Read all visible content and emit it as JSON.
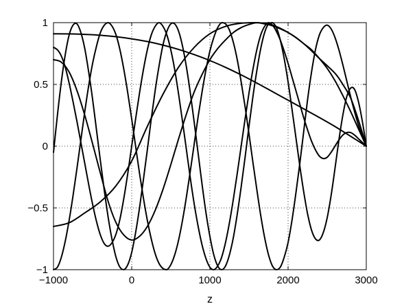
{
  "chart_data": {
    "type": "line",
    "title": "",
    "xlabel": "z",
    "ylabel": "",
    "xlim": [
      -1000,
      3000
    ],
    "ylim": [
      -1,
      1
    ],
    "grid": true,
    "grid_style": "dotted",
    "box": true,
    "line_color": "#000000",
    "xticks": [
      -1000,
      0,
      1000,
      2000,
      3000
    ],
    "xtick_labels": [
      "−1000",
      "0",
      "1000",
      "2000",
      "3000"
    ],
    "yticks": [
      -1,
      -0.5,
      0,
      0.5,
      1
    ],
    "ytick_labels": [
      "−1",
      "−0.5",
      "0",
      "0.5",
      "1"
    ],
    "series": [
      {
        "x": [
          -1000,
          -800,
          -600,
          -400,
          -200,
          0,
          200,
          400,
          600,
          800,
          1000,
          1200,
          1400,
          1600,
          1800,
          2000,
          2200,
          2400,
          2600,
          2800,
          3000
        ],
        "y": [
          0.91,
          0.909,
          0.905,
          0.898,
          0.886,
          0.869,
          0.847,
          0.818,
          0.783,
          0.741,
          0.693,
          0.638,
          0.577,
          0.511,
          0.442,
          0.372,
          0.302,
          0.232,
          0.159,
          0.08,
          0.0
        ]
      },
      {
        "x": [
          -1000,
          -800,
          -600,
          -400,
          -200,
          0,
          200,
          400,
          600,
          800,
          1000,
          1200,
          1400,
          1600,
          1800,
          2000,
          2200,
          2400,
          2600,
          2700,
          2800,
          2900,
          3000
        ],
        "y": [
          -0.65,
          -0.62,
          -0.54,
          -0.45,
          -0.32,
          -0.12,
          0.16,
          0.42,
          0.64,
          0.8,
          0.91,
          0.97,
          0.995,
          1.0,
          0.98,
          0.92,
          0.83,
          0.71,
          0.59,
          0.5,
          0.39,
          0.21,
          0.0
        ]
      },
      {
        "x": [
          -1000,
          -900,
          -800,
          -700,
          -600,
          -500,
          -400,
          -300,
          -200,
          -100,
          0,
          100,
          200,
          300,
          400,
          500,
          600,
          700,
          800,
          900,
          1000,
          1100,
          1200,
          1300,
          1400,
          1500,
          1600,
          1700,
          1800,
          1900,
          2000,
          2100,
          2200,
          2300,
          2400,
          2500,
          2600,
          2700,
          2800,
          2900,
          3000
        ],
        "y": [
          0.7,
          0.68,
          0.6,
          0.45,
          0.25,
          0.02,
          -0.22,
          -0.45,
          -0.62,
          -0.72,
          -0.76,
          -0.73,
          -0.65,
          -0.52,
          -0.35,
          -0.15,
          0.06,
          0.26,
          0.44,
          0.58,
          0.7,
          0.79,
          0.86,
          0.92,
          0.96,
          0.985,
          1.0,
          0.99,
          0.975,
          0.95,
          0.92,
          0.88,
          0.83,
          0.78,
          0.71,
          0.63,
          0.53,
          0.41,
          0.28,
          0.14,
          0.0
        ]
      },
      {
        "x": [
          -1000,
          -950,
          -900,
          -850,
          -800,
          -750,
          -700,
          -650,
          -600,
          -550,
          -500,
          -450,
          -400,
          -350,
          -300,
          -250,
          -200,
          -150,
          -100,
          -50,
          0,
          50,
          100,
          150,
          200,
          250,
          300,
          350,
          400,
          450,
          500,
          550,
          600,
          650,
          700,
          750,
          800,
          850,
          900,
          950,
          1000,
          1050,
          1100,
          1150,
          1200,
          1250,
          1300,
          1350,
          1400,
          1450,
          1500,
          1550,
          1600,
          1650,
          1700,
          1750,
          1800,
          1850,
          1900,
          1950,
          2000,
          2050,
          2100,
          2150,
          2200,
          2250,
          2300,
          2350,
          2400,
          2450,
          2500,
          2550,
          2600,
          2650,
          2700,
          2750,
          2800,
          2850,
          2900,
          2950,
          3000
        ],
        "y": [
          0.8,
          0.78,
          0.73,
          0.64,
          0.51,
          0.36,
          0.2,
          0.03,
          -0.14,
          -0.31,
          -0.47,
          -0.61,
          -0.72,
          -0.79,
          -0.81,
          -0.78,
          -0.71,
          -0.59,
          -0.42,
          -0.22,
          0.0,
          0.22,
          0.43,
          0.62,
          0.78,
          0.9,
          0.97,
          1.0,
          0.97,
          0.9,
          0.78,
          0.62,
          0.42,
          0.2,
          -0.03,
          -0.26,
          -0.47,
          -0.65,
          -0.8,
          -0.91,
          -0.98,
          -1.0,
          -0.97,
          -0.9,
          -0.78,
          -0.62,
          -0.43,
          -0.22,
          0.0,
          0.22,
          0.43,
          0.62,
          0.78,
          0.9,
          0.97,
          1.0,
          0.98,
          0.93,
          0.86,
          0.77,
          0.67,
          0.56,
          0.45,
          0.34,
          0.23,
          0.13,
          0.04,
          -0.03,
          -0.08,
          -0.1,
          -0.09,
          -0.05,
          0.0,
          0.05,
          0.09,
          0.11,
          0.11,
          0.09,
          0.06,
          0.03,
          0.0
        ]
      },
      {
        "x": [
          -1000,
          -950,
          -900,
          -850,
          -800,
          -750,
          -700,
          -650,
          -600,
          -550,
          -500,
          -450,
          -400,
          -350,
          -300,
          -250,
          -200,
          -150,
          -100,
          -50,
          0,
          50,
          100,
          150,
          200,
          250,
          300,
          350,
          400,
          450,
          500,
          550,
          600,
          650,
          700,
          750,
          800,
          850,
          900,
          950,
          1000,
          1050,
          1100,
          1150,
          1200,
          1250,
          1300,
          1350,
          1400,
          1450,
          1500,
          1550,
          1600,
          1650,
          1700,
          1750,
          1800,
          1850,
          1900,
          1950,
          2000,
          2050,
          2100,
          2150,
          2200,
          2250,
          2300,
          2350,
          2400,
          2450,
          2500,
          2550,
          2600,
          2650,
          2700,
          2750,
          2800,
          2850,
          2900,
          2950,
          3000
        ],
        "y": [
          -1.0,
          -0.98,
          -0.9,
          -0.77,
          -0.6,
          -0.4,
          -0.18,
          0.05,
          0.28,
          0.49,
          0.67,
          0.81,
          0.92,
          0.98,
          1.0,
          0.97,
          0.9,
          0.78,
          0.62,
          0.43,
          0.22,
          0.0,
          -0.22,
          -0.42,
          -0.6,
          -0.75,
          -0.87,
          -0.95,
          -0.99,
          -1.0,
          -0.96,
          -0.88,
          -0.76,
          -0.6,
          -0.41,
          -0.2,
          0.02,
          0.24,
          0.44,
          0.62,
          0.77,
          0.88,
          0.96,
          1.0,
          0.99,
          0.94,
          0.84,
          0.7,
          0.52,
          0.32,
          0.1,
          -0.13,
          -0.35,
          -0.56,
          -0.74,
          -0.88,
          -0.97,
          -1.0,
          -0.98,
          -0.9,
          -0.78,
          -0.6,
          -0.38,
          -0.14,
          0.12,
          0.38,
          0.6,
          0.78,
          0.9,
          0.96,
          0.98,
          0.95,
          0.88,
          0.78,
          0.66,
          0.53,
          0.4,
          0.28,
          0.17,
          0.08,
          0.0
        ]
      },
      {
        "x": [
          -1000,
          -950,
          -900,
          -850,
          -800,
          -750,
          -700,
          -650,
          -600,
          -550,
          -500,
          -450,
          -400,
          -350,
          -300,
          -250,
          -200,
          -150,
          -100,
          -50,
          0,
          50,
          100,
          150,
          200,
          250,
          300,
          350,
          400,
          450,
          500,
          550,
          600,
          650,
          700,
          750,
          800,
          850,
          900,
          950,
          1000,
          1050,
          1100,
          1150,
          1200,
          1250,
          1300,
          1350,
          1400,
          1450,
          1500,
          1550,
          1600,
          1650,
          1700,
          1750,
          1800,
          1850,
          1900,
          1950,
          2000,
          2050,
          2100,
          2150,
          2200,
          2250,
          2300,
          2350,
          2400,
          2450,
          2500,
          2550,
          2600,
          2650,
          2700,
          2750,
          2800,
          2850,
          2900,
          2950,
          3000
        ],
        "y": [
          -0.05,
          0.25,
          0.52,
          0.74,
          0.9,
          0.98,
          0.99,
          0.92,
          0.79,
          0.6,
          0.38,
          0.13,
          -0.12,
          -0.36,
          -0.58,
          -0.76,
          -0.9,
          -0.98,
          -1.0,
          -0.96,
          -0.86,
          -0.7,
          -0.5,
          -0.27,
          -0.03,
          0.22,
          0.45,
          0.65,
          0.82,
          0.93,
          0.99,
          0.99,
          0.93,
          0.81,
          0.64,
          0.43,
          0.19,
          -0.06,
          -0.31,
          -0.54,
          -0.73,
          -0.88,
          -0.97,
          -1.0,
          -0.97,
          -0.88,
          -0.74,
          -0.55,
          -0.33,
          -0.09,
          0.16,
          0.4,
          0.61,
          0.79,
          0.92,
          0.99,
          1.0,
          0.96,
          0.86,
          0.71,
          0.52,
          0.3,
          0.07,
          -0.16,
          -0.37,
          -0.55,
          -0.68,
          -0.75,
          -0.76,
          -0.7,
          -0.58,
          -0.4,
          -0.18,
          0.05,
          0.25,
          0.4,
          0.47,
          0.46,
          0.36,
          0.2,
          0.0
        ]
      }
    ]
  }
}
